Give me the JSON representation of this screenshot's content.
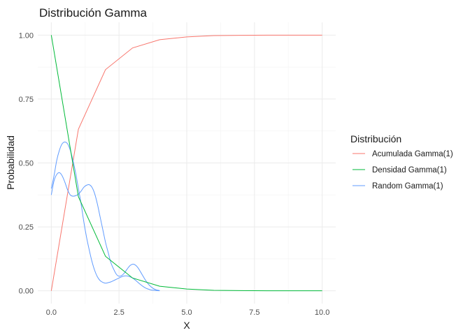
{
  "chart_data": {
    "type": "line",
    "title": "Distribución Gamma",
    "xlabel": "X",
    "ylabel": "Probabilidad",
    "xlim": [
      -0.5,
      10.5
    ],
    "ylim": [
      -0.05,
      1.05
    ],
    "x_ticks": [
      0,
      2.5,
      5,
      7.5,
      10
    ],
    "x_tick_labels": [
      "0.0",
      "2.5",
      "5.0",
      "7.5",
      "10.0"
    ],
    "y_ticks": [
      0,
      0.25,
      0.5,
      0.75,
      1
    ],
    "y_tick_labels": [
      "0.00",
      "0.25",
      "0.50",
      "0.75",
      "1.00"
    ],
    "grid": true,
    "legend": {
      "title": "Distribución",
      "position": "right"
    },
    "series": [
      {
        "name": "Acumulada Gamma(1)",
        "color": "#F8766D",
        "x": [
          0,
          1,
          2,
          3,
          4,
          5,
          6,
          7,
          8,
          9,
          10
        ],
        "values": [
          0,
          0.632,
          0.865,
          0.95,
          0.982,
          0.993,
          0.998,
          0.999,
          1.0,
          1.0,
          1.0
        ]
      },
      {
        "name": "Densidad Gamma(1)",
        "color": "#00BA38",
        "x": [
          0,
          1,
          2,
          3,
          4,
          5,
          6,
          7,
          8,
          9,
          10
        ],
        "values": [
          1.0,
          0.368,
          0.135,
          0.05,
          0.018,
          0.007,
          0.002,
          0.001,
          0.0,
          0.0,
          0.0
        ]
      },
      {
        "name": "Random Gamma(1)",
        "color": "#619CFF",
        "curves": [
          {
            "x": [
              0,
              0.1,
              0.2,
              0.3,
              0.4,
              0.5,
              0.6,
              0.7,
              0.8,
              0.9,
              1.0,
              1.1,
              1.2,
              1.3,
              1.4,
              1.5,
              1.6,
              1.7,
              1.8,
              1.9,
              2.0,
              2.1,
              2.2,
              2.3,
              2.4,
              2.5,
              2.6,
              2.7,
              2.8,
              2.9,
              3.0,
              3.1,
              3.2,
              3.3,
              3.4,
              3.5,
              3.6,
              3.7,
              3.8,
              3.9,
              4.0
            ],
            "values": [
              0.4,
              0.45,
              0.51,
              0.55,
              0.575,
              0.582,
              0.575,
              0.55,
              0.51,
              0.46,
              0.4,
              0.34,
              0.27,
              0.21,
              0.16,
              0.115,
              0.08,
              0.055,
              0.04,
              0.033,
              0.03,
              0.032,
              0.035,
              0.04,
              0.045,
              0.05,
              0.055,
              0.058,
              0.058,
              0.055,
              0.05,
              0.042,
              0.033,
              0.024,
              0.016,
              0.01,
              0.006,
              0.003,
              0.002,
              0.001,
              0.0
            ]
          },
          {
            "x": [
              0,
              0.1,
              0.2,
              0.3,
              0.4,
              0.5,
              0.6,
              0.7,
              0.8,
              0.9,
              1.0,
              1.1,
              1.2,
              1.3,
              1.4,
              1.5,
              1.6,
              1.7,
              1.8,
              1.9,
              2.0,
              2.1,
              2.2,
              2.3,
              2.4,
              2.5,
              2.6,
              2.7,
              2.8,
              2.9,
              3.0,
              3.1,
              3.2,
              3.3,
              3.4,
              3.5,
              3.6,
              3.7,
              3.8,
              3.9,
              4.0
            ],
            "values": [
              0.375,
              0.43,
              0.455,
              0.462,
              0.45,
              0.425,
              0.395,
              0.375,
              0.37,
              0.372,
              0.378,
              0.39,
              0.405,
              0.413,
              0.415,
              0.405,
              0.38,
              0.34,
              0.29,
              0.24,
              0.19,
              0.15,
              0.11,
              0.085,
              0.065,
              0.057,
              0.06,
              0.07,
              0.085,
              0.098,
              0.104,
              0.101,
              0.09,
              0.073,
              0.055,
              0.038,
              0.024,
              0.014,
              0.007,
              0.003,
              0.001
            ]
          }
        ]
      }
    ]
  }
}
